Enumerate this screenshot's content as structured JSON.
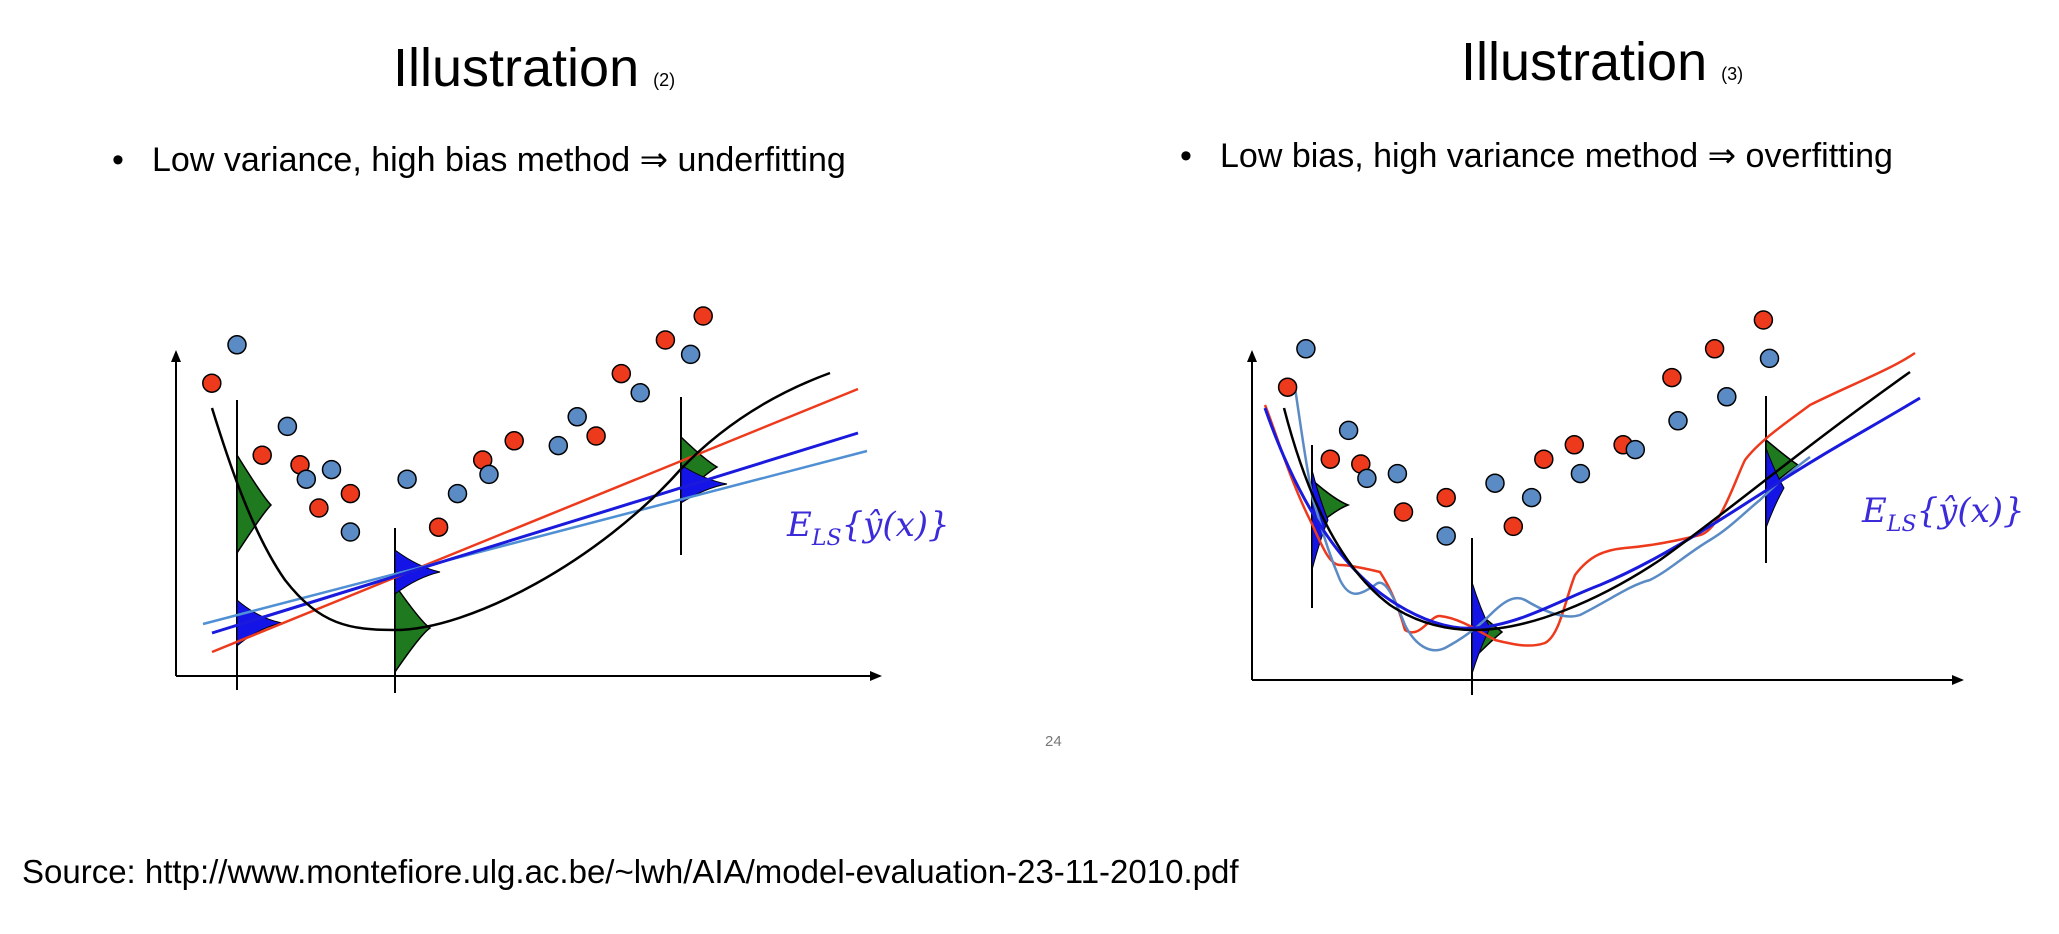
{
  "slides": [
    {
      "title": "Illustration",
      "number": "(2)",
      "bullet": "Low variance, high bias method ⇒ underfitting",
      "curve_label": {
        "main": "E",
        "sub": "LS",
        "rest": "{ŷ(x)}"
      },
      "scatter": {
        "red": [
          [
            -0.4,
            6.1
          ],
          [
            0.4,
            4.6
          ],
          [
            1.0,
            4.4
          ],
          [
            1.3,
            3.5
          ],
          [
            1.8,
            3.8
          ],
          [
            3.2,
            3.1
          ],
          [
            3.9,
            4.5
          ],
          [
            4.4,
            4.9
          ],
          [
            5.7,
            5.0
          ],
          [
            6.1,
            6.3
          ],
          [
            6.8,
            7.0
          ],
          [
            7.4,
            7.5
          ]
        ],
        "blue": [
          [
            0.0,
            6.9
          ],
          [
            0.8,
            5.2
          ],
          [
            1.1,
            4.1
          ],
          [
            1.5,
            4.3
          ],
          [
            1.8,
            3.0
          ],
          [
            2.7,
            4.1
          ],
          [
            3.5,
            3.8
          ],
          [
            4.0,
            4.2
          ],
          [
            5.1,
            4.8
          ],
          [
            5.4,
            5.4
          ],
          [
            6.4,
            5.9
          ],
          [
            7.2,
            6.7
          ]
        ]
      },
      "colors": {
        "red": "#ee3a1c",
        "blue": "#5b8bc4",
        "fit": "#1a1add",
        "fit_light": "#4f8fd3",
        "density_green": "#1f7a1f",
        "density_blue": "#1414e6",
        "truth": "#000000"
      }
    },
    {
      "title": "Illustration",
      "number": "(3)",
      "bullet": "Low bias, high variance method ⇒ overfitting",
      "curve_label": {
        "main": "E",
        "sub": "LS",
        "rest": "{ŷ(x)}"
      },
      "scatter": {
        "red": [
          [
            -0.4,
            6.1
          ],
          [
            0.3,
            4.6
          ],
          [
            0.8,
            4.5
          ],
          [
            1.5,
            3.5
          ],
          [
            2.2,
            3.8
          ],
          [
            3.3,
            3.2
          ],
          [
            3.8,
            4.6
          ],
          [
            4.3,
            4.9
          ],
          [
            5.1,
            4.9
          ],
          [
            5.9,
            6.3
          ],
          [
            6.6,
            6.9
          ],
          [
            7.4,
            7.5
          ]
        ],
        "blue": [
          [
            -0.1,
            6.9
          ],
          [
            0.6,
            5.2
          ],
          [
            0.9,
            4.2
          ],
          [
            1.4,
            4.3
          ],
          [
            2.2,
            3.0
          ],
          [
            3.0,
            4.1
          ],
          [
            3.6,
            3.8
          ],
          [
            4.4,
            4.3
          ],
          [
            5.3,
            4.8
          ],
          [
            6.0,
            5.4
          ],
          [
            6.8,
            5.9
          ],
          [
            7.5,
            6.7
          ]
        ]
      },
      "colors": {
        "red": "#ee3a1c",
        "blue": "#5b8bc4",
        "fit": "#1a1add",
        "fit_light": "#4f8fd3",
        "density_green": "#1f7a1f",
        "density_blue": "#1414e6",
        "truth": "#000000"
      }
    }
  ],
  "page_number": "24",
  "source": "Source: http://www.montefiore.ulg.ac.be/~lwh/AIA/model-evaluation-23-11-2010.pdf"
}
